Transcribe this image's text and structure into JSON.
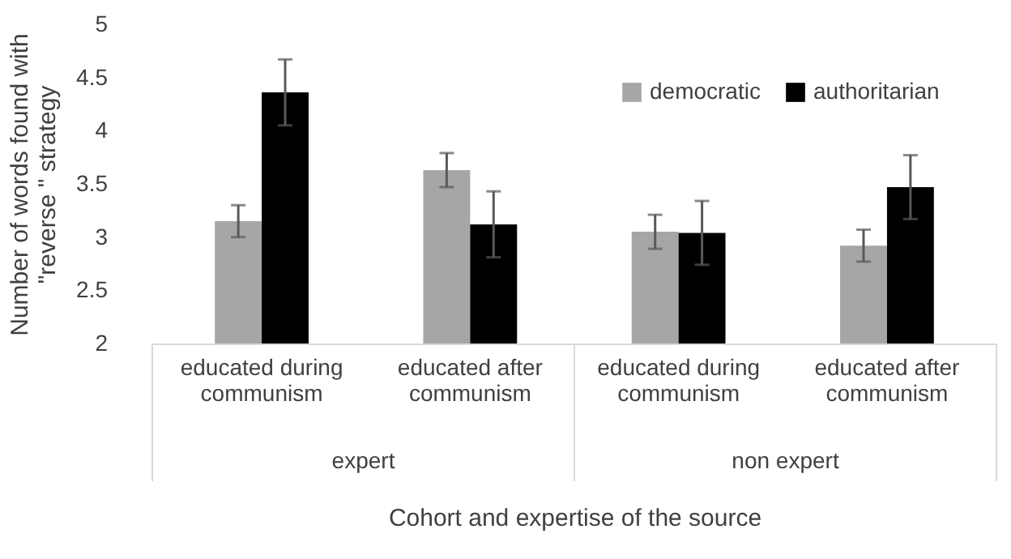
{
  "chart_data": {
    "type": "bar",
    "ylabel": "Number of words found with \"reverse \" strategy",
    "xlabel": "Cohort and expertise of the source",
    "categories": [
      "educated during communism",
      "educated after communism",
      "educated during communism",
      "educated after communism"
    ],
    "annotations": [
      "expert",
      "non expert"
    ],
    "series": [
      {
        "name": "democratic",
        "color": "#a6a6a6",
        "values": [
          3.15,
          3.63,
          3.05,
          2.92
        ],
        "errors": [
          0.15,
          0.16,
          0.16,
          0.15
        ]
      },
      {
        "name": "authoritarian",
        "color": "#000000",
        "values": [
          4.36,
          3.12,
          3.04,
          3.47
        ],
        "errors": [
          0.31,
          0.31,
          0.3,
          0.3
        ]
      }
    ],
    "ylim": [
      2,
      5
    ],
    "yticks": [
      2,
      2.5,
      3,
      3.5,
      4,
      4.5,
      5
    ],
    "legend": "top right",
    "grid": false
  }
}
